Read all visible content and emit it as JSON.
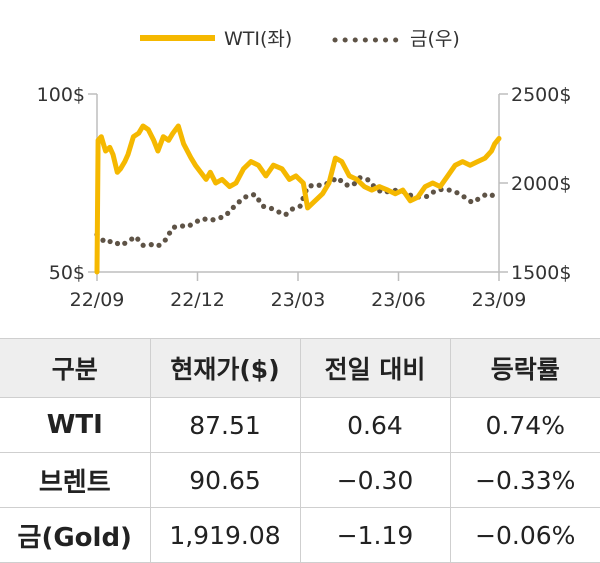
{
  "chart_data": {
    "type": "line",
    "legend": [
      {
        "name": "WTI(좌)",
        "color": "#f5b800",
        "style": "solid"
      },
      {
        "name": "금(우)",
        "color": "#5e5346",
        "style": "dotted"
      }
    ],
    "legend_position": "top-center",
    "x_ticks": [
      "22/09",
      "22/12",
      "23/03",
      "23/06",
      "23/09"
    ],
    "y_left": {
      "ticks": [
        "100$",
        "50$"
      ],
      "range": [
        50,
        100
      ]
    },
    "y_right": {
      "ticks": [
        "2500$",
        "2000$",
        "1500$"
      ],
      "range": [
        1500,
        2500
      ]
    },
    "grid": false,
    "series": [
      {
        "name": "WTI(좌)",
        "axis": "left",
        "x": [
          "2022-09-01",
          "2022-09-02",
          "2022-09-05",
          "2022-09-07",
          "2022-09-09",
          "2022-09-13",
          "2022-09-16",
          "2022-09-20",
          "2022-09-23",
          "2022-09-27",
          "2022-09-30",
          "2022-10-05",
          "2022-10-10",
          "2022-10-14",
          "2022-10-19",
          "2022-10-24",
          "2022-10-28",
          "2022-11-02",
          "2022-11-07",
          "2022-11-11",
          "2022-11-16",
          "2022-11-21",
          "2022-11-28",
          "2022-12-02",
          "2022-12-07",
          "2022-12-12",
          "2022-12-16",
          "2022-12-21",
          "2022-12-27",
          "2023-01-03",
          "2023-01-09",
          "2023-01-16",
          "2023-01-23",
          "2023-01-30",
          "2023-02-06",
          "2023-02-13",
          "2023-02-21",
          "2023-02-28",
          "2023-03-06",
          "2023-03-13",
          "2023-03-17",
          "2023-03-24",
          "2023-03-31",
          "2023-04-06",
          "2023-04-12",
          "2023-04-18",
          "2023-04-25",
          "2023-05-02",
          "2023-05-09",
          "2023-05-16",
          "2023-05-23",
          "2023-05-31",
          "2023-06-07",
          "2023-06-14",
          "2023-06-21",
          "2023-06-28",
          "2023-07-05",
          "2023-07-12",
          "2023-07-19",
          "2023-07-26",
          "2023-08-02",
          "2023-08-09",
          "2023-08-16",
          "2023-08-23",
          "2023-08-30",
          "2023-09-05",
          "2023-09-08",
          "2023-09-12"
        ],
        "values": [
          50,
          87,
          88,
          86,
          84,
          85,
          83,
          78,
          79,
          81,
          83,
          88,
          89,
          91,
          90,
          87,
          84,
          88,
          87,
          89,
          91,
          86,
          82,
          80,
          78,
          76,
          78,
          75,
          76,
          74,
          75,
          79,
          81,
          80,
          77,
          80,
          79,
          76,
          77,
          75,
          68,
          70,
          72,
          75,
          82,
          81,
          77,
          76,
          74,
          73,
          74,
          73,
          72,
          73,
          70,
          71,
          74,
          75,
          74,
          77,
          80,
          81,
          80,
          81,
          82,
          84,
          86,
          87.51
        ]
      },
      {
        "name": "금(우)",
        "axis": "right",
        "x": [
          "2022-09-01",
          "2022-09-09",
          "2022-09-16",
          "2022-09-23",
          "2022-09-30",
          "2022-10-07",
          "2022-10-14",
          "2022-10-21",
          "2022-10-28",
          "2022-11-04",
          "2022-11-11",
          "2022-11-18",
          "2022-11-25",
          "2022-12-02",
          "2022-12-09",
          "2022-12-16",
          "2022-12-23",
          "2022-12-30",
          "2023-01-06",
          "2023-01-13",
          "2023-01-20",
          "2023-01-27",
          "2023-02-03",
          "2023-02-10",
          "2023-02-17",
          "2023-02-24",
          "2023-03-03",
          "2023-03-10",
          "2023-03-17",
          "2023-03-24",
          "2023-03-31",
          "2023-04-07",
          "2023-04-14",
          "2023-04-21",
          "2023-04-28",
          "2023-05-05",
          "2023-05-12",
          "2023-05-19",
          "2023-05-26",
          "2023-06-02",
          "2023-06-09",
          "2023-06-16",
          "2023-06-23",
          "2023-06-30",
          "2023-07-07",
          "2023-07-14",
          "2023-07-21",
          "2023-07-28",
          "2023-08-04",
          "2023-08-11",
          "2023-08-18",
          "2023-08-25",
          "2023-09-01",
          "2023-09-12"
        ],
        "values": [
          1710,
          1665,
          1675,
          1650,
          1670,
          1700,
          1650,
          1655,
          1645,
          1680,
          1750,
          1760,
          1755,
          1780,
          1800,
          1790,
          1800,
          1815,
          1860,
          1900,
          1930,
          1935,
          1870,
          1860,
          1840,
          1820,
          1855,
          1870,
          1980,
          1990,
          1985,
          2005,
          2030,
          1990,
          1985,
          2030,
          2020,
          1975,
          1945,
          1955,
          1960,
          1950,
          1925,
          1920,
          1925,
          1955,
          1965,
          1960,
          1945,
          1920,
          1890,
          1915,
          1940,
          1919.08
        ]
      }
    ]
  },
  "table": {
    "headers": [
      "구분",
      "현재가($)",
      "전일 대비",
      "등락률"
    ],
    "rows": [
      [
        "WTI",
        "87.51",
        "0.64",
        "0.74%"
      ],
      [
        "브렌트",
        "90.65",
        "-0.30",
        "-0.33%"
      ],
      [
        "금(Gold)",
        "1,919.08",
        "-1.19",
        "-0.06%"
      ]
    ]
  }
}
